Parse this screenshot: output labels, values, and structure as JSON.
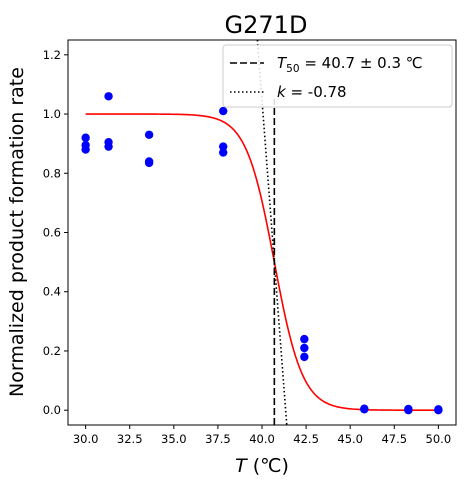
{
  "chart_data": {
    "type": "scatter",
    "title": "G271D",
    "xlabel_var": "T",
    "xlabel_unit": " (℃)",
    "ylabel": "Normalized product formation rate",
    "xlim": [
      29.0,
      51.0
    ],
    "ylim": [
      -0.05,
      1.25
    ],
    "xticks": [
      30.0,
      32.5,
      35.0,
      37.5,
      40.0,
      42.5,
      45.0,
      47.5,
      50.0
    ],
    "xtick_labels": [
      "30.0",
      "32.5",
      "35.0",
      "37.5",
      "40.0",
      "42.5",
      "45.0",
      "47.5",
      "50.0"
    ],
    "yticks": [
      0.0,
      0.2,
      0.4,
      0.6,
      0.8,
      1.0,
      1.2
    ],
    "ytick_labels": [
      "0.0",
      "0.2",
      "0.4",
      "0.6",
      "0.8",
      "1.0",
      "1.2"
    ],
    "grid": false,
    "legend_position": "upper right",
    "points_color": "#0000ff",
    "fit_color": "#ff0000",
    "scatter": {
      "x": [
        30.0,
        30.0,
        30.0,
        31.3,
        31.3,
        31.3,
        33.6,
        33.6,
        33.6,
        37.8,
        37.8,
        37.8,
        42.4,
        42.4,
        42.4,
        45.8,
        45.8,
        48.3,
        48.3,
        50.0,
        50.0
      ],
      "y": [
        0.88,
        0.895,
        0.92,
        0.89,
        0.905,
        1.06,
        0.835,
        0.84,
        0.93,
        0.87,
        0.89,
        1.01,
        0.18,
        0.21,
        0.24,
        0.003,
        0.005,
        0.0,
        0.004,
        0.0,
        0.003
      ]
    },
    "fit_curve": {
      "type": "logistic",
      "top": 1.0,
      "midpoint": 40.7,
      "slope_scale": 0.8,
      "x_range": [
        30.0,
        50.0
      ]
    },
    "vline": {
      "x": 40.7,
      "y_range": [
        -0.05,
        1.05
      ],
      "style": "dashed",
      "legend_sub": "50",
      "legend_rest": " = 40.7 ± 0.3 ℃"
    },
    "tangent": {
      "slope": -0.78,
      "x0": 40.7,
      "y0": 0.5,
      "style": "dotted",
      "legend_var": "k",
      "legend_rest": " = -0.78"
    }
  }
}
